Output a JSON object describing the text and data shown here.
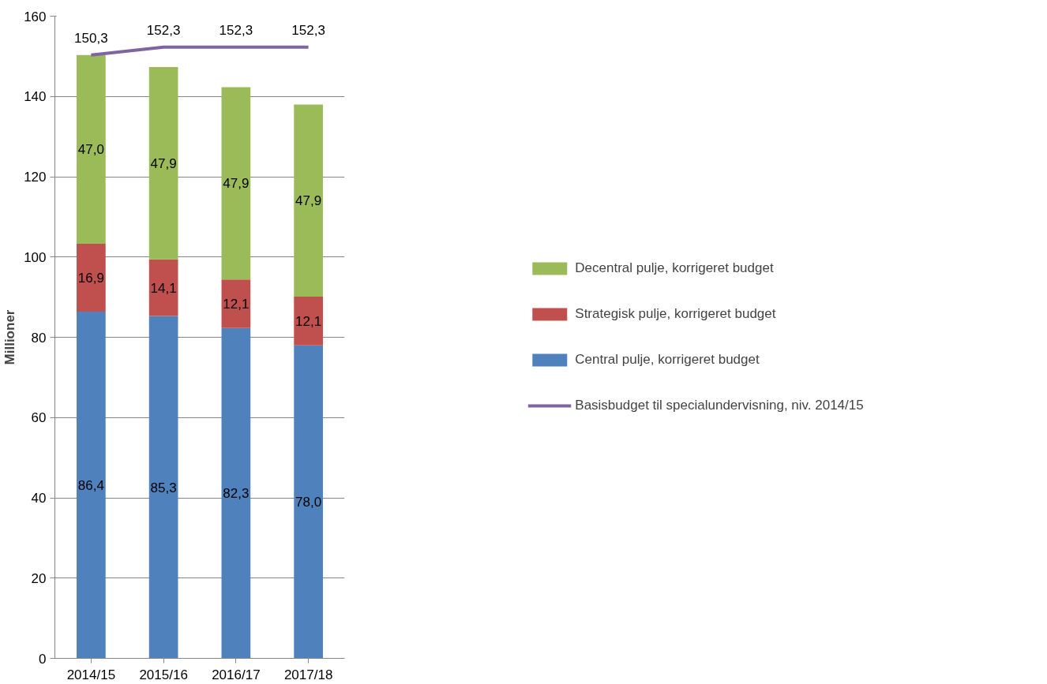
{
  "chart_data": {
    "type": "bar",
    "stacked": true,
    "ylabel": "Millioner",
    "categories": [
      "2014/15",
      "2015/16",
      "2016/17",
      "2017/18"
    ],
    "ylim": [
      0,
      160
    ],
    "yticks": [
      0,
      20,
      40,
      60,
      80,
      100,
      120,
      140,
      160
    ],
    "grid": "y",
    "legend": "right",
    "series": [
      {
        "name": "Central pulje, korrigeret budget",
        "color": "#4f81bd",
        "values": [
          86.4,
          85.3,
          82.3,
          78.0
        ],
        "value_labels": [
          "86,4",
          "85,3",
          "82,3",
          "78,0"
        ]
      },
      {
        "name": "Strategisk pulje, korrigeret budget",
        "color": "#c0504d",
        "values": [
          16.9,
          14.1,
          12.1,
          12.1
        ],
        "value_labels": [
          "16,9",
          "14,1",
          "12,1",
          "12,1"
        ]
      },
      {
        "name": "Decentral pulje, korrigeret budget",
        "color": "#9bbb59",
        "values": [
          47.0,
          47.9,
          47.9,
          47.9
        ],
        "value_labels": [
          "47,0",
          "47,9",
          "47,9",
          "47,9"
        ]
      },
      {
        "name": "Basisbudget til specialundervisning, niv. 2014/15",
        "type": "line",
        "color": "#8064a2",
        "values": [
          150.3,
          152.3,
          152.3,
          152.3
        ],
        "value_labels": [
          "150,3",
          "152,3",
          "152,3",
          "152,3"
        ]
      }
    ]
  }
}
